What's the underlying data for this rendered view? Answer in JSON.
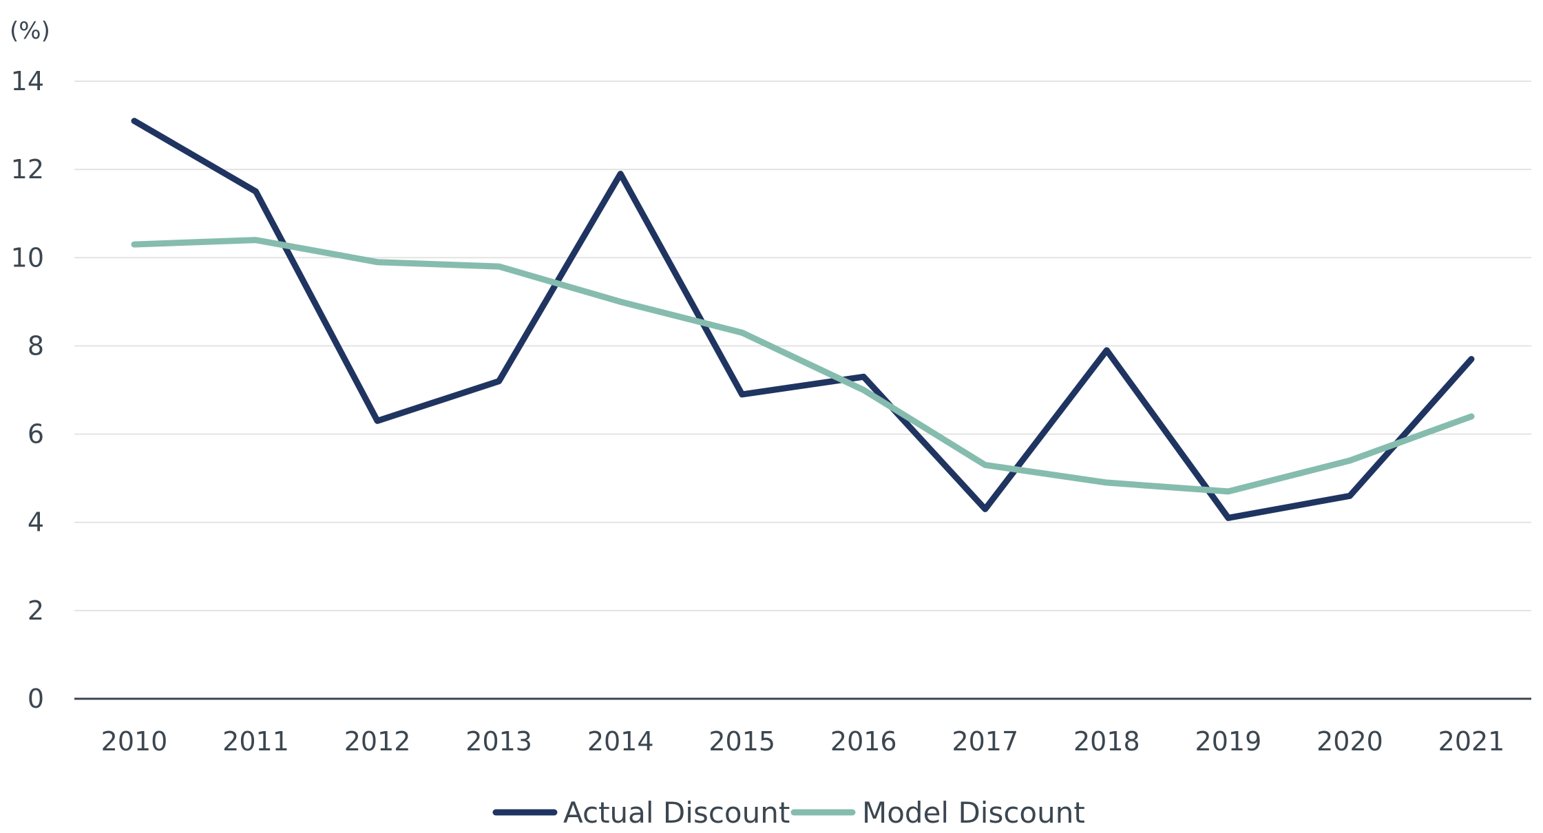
{
  "chart_data": {
    "type": "line",
    "title": "",
    "xlabel": "",
    "ylabel": "(%)",
    "ylim": [
      0,
      14
    ],
    "yticks": [
      0,
      2,
      4,
      6,
      8,
      10,
      12,
      14
    ],
    "grid": true,
    "legend_position": "bottom-center",
    "categories": [
      "2010",
      "2011",
      "2012",
      "2013",
      "2014",
      "2015",
      "2016",
      "2017",
      "2018",
      "2019",
      "2020",
      "2021"
    ],
    "series": [
      {
        "name": "Actual Discount",
        "color": "#1f3460",
        "values": [
          13.1,
          11.5,
          6.3,
          7.2,
          11.9,
          6.9,
          7.3,
          4.3,
          7.9,
          4.1,
          4.6,
          7.7
        ]
      },
      {
        "name": "Model Discount",
        "color": "#85bcae",
        "values": [
          10.3,
          10.4,
          9.9,
          9.8,
          9.0,
          8.3,
          7.0,
          5.3,
          4.9,
          4.7,
          5.4,
          6.4
        ]
      }
    ]
  }
}
